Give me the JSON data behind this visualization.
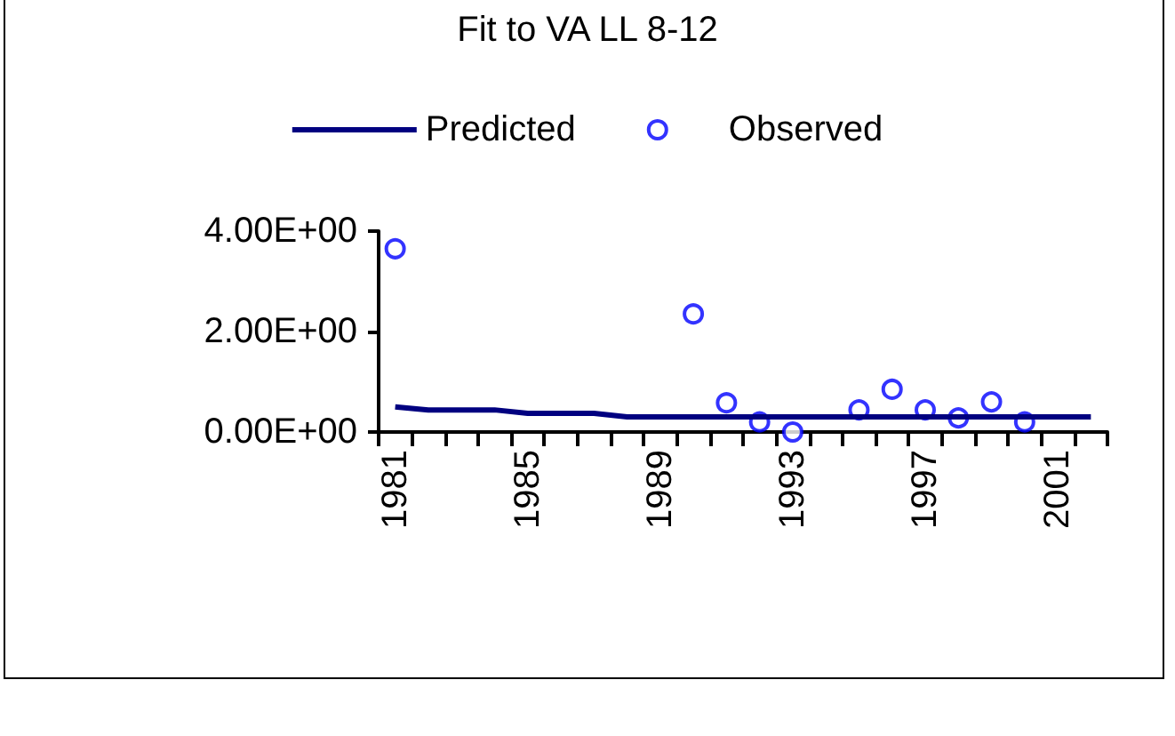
{
  "chart_data": {
    "type": "line",
    "title": "Fit to VA LL 8-12",
    "categories": [
      "1981",
      null,
      null,
      null,
      "1985",
      null,
      null,
      null,
      "1989",
      null,
      null,
      null,
      "1993",
      null,
      null,
      null,
      "1997",
      null,
      null,
      null,
      "2001",
      null
    ],
    "series": [
      {
        "name": "Predicted",
        "color": "#000080",
        "marker": "none",
        "values": [
          0.5,
          0.44,
          0.44,
          0.44,
          0.37,
          0.37,
          0.37,
          0.3,
          0.3,
          0.3,
          0.3,
          0.3,
          0.3,
          0.3,
          0.3,
          0.3,
          0.3,
          0.3,
          0.3,
          0.3,
          0.3,
          0.3
        ]
      },
      {
        "name": "Observed",
        "type": "scatter",
        "color": "#0000ff",
        "marker": "circle",
        "values": [
          3.65,
          null,
          null,
          null,
          null,
          null,
          null,
          null,
          null,
          2.35,
          0.58,
          0.2,
          0.0,
          null,
          0.44,
          0.85,
          0.44,
          0.28,
          0.6,
          0.2,
          null,
          null
        ]
      }
    ],
    "ylim": [
      0,
      4
    ],
    "yticks": [
      {
        "value": 0,
        "label": "0.00E+00"
      },
      {
        "value": 2,
        "label": "2.00E+00"
      },
      {
        "value": 4,
        "label": "4.00E+00"
      }
    ],
    "grid": false,
    "legend": "top"
  }
}
